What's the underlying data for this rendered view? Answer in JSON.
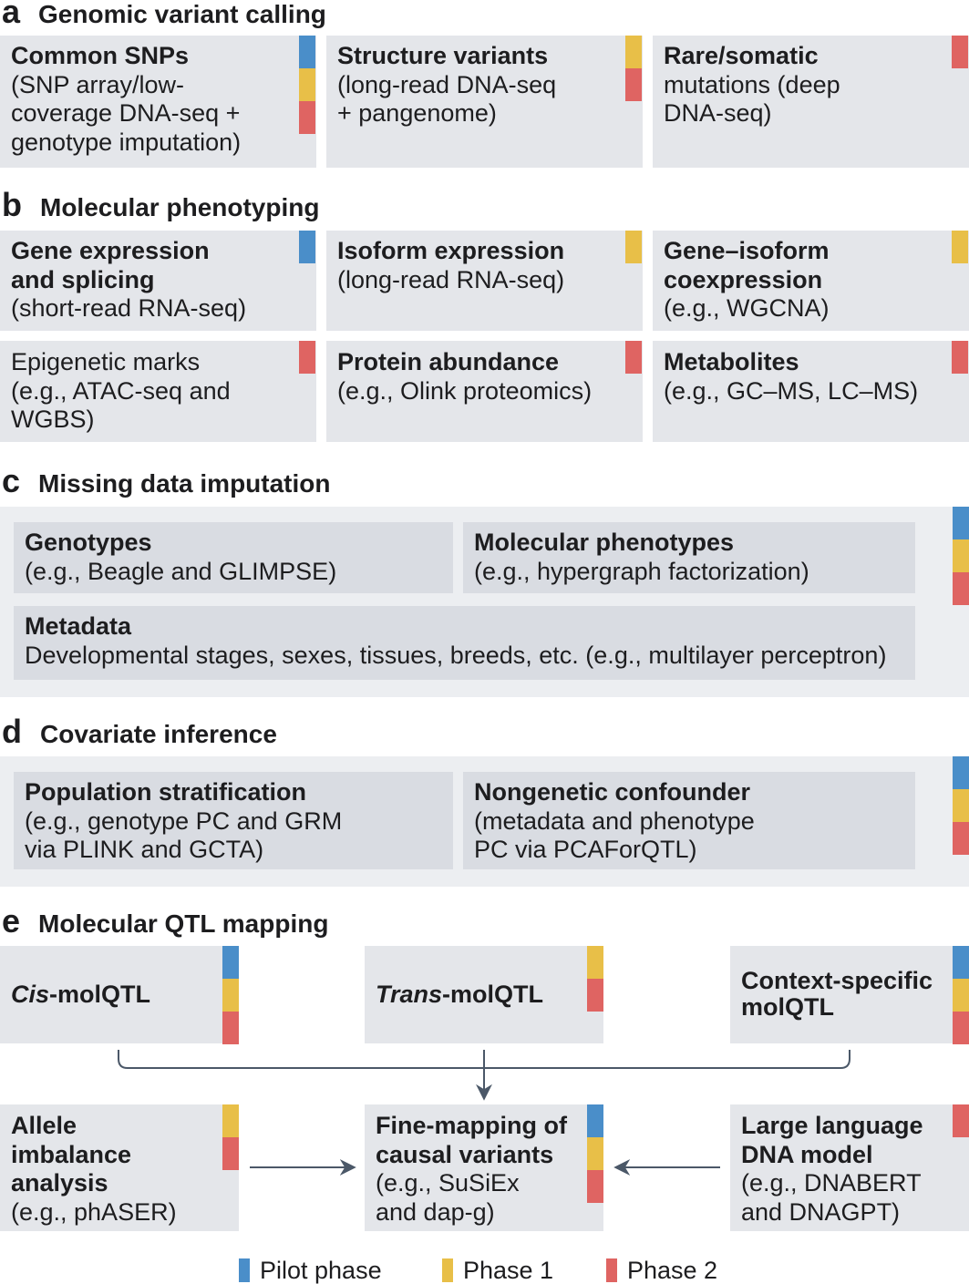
{
  "sections": {
    "a": {
      "letter": "a",
      "title": "Genomic variant calling",
      "cards": [
        {
          "title": "Common SNPs",
          "lines": [
            "(SNP array/low-",
            "coverage DNA-seq +",
            "genotype imputation)"
          ]
        },
        {
          "title": "Structure variants",
          "lines": [
            "(long-read DNA-seq",
            "+ pangenome)"
          ]
        },
        {
          "title": "Rare/somatic",
          "lines": [
            "mutations (deep",
            "DNA-seq)"
          ]
        }
      ]
    },
    "b": {
      "letter": "b",
      "title": "Molecular phenotyping",
      "cards": [
        {
          "title_lines": [
            "Gene expression",
            "and splicing"
          ],
          "lines": [
            "(short-read RNA-seq)"
          ]
        },
        {
          "title_lines": [
            "Isoform expression"
          ],
          "lines": [
            "(long-read RNA-seq)"
          ]
        },
        {
          "title_lines": [
            "Gene–isoform",
            "coexpression"
          ],
          "lines": [
            "(e.g., WGCNA)"
          ]
        },
        {
          "lines": [
            "Epigenetic marks",
            "(e.g., ATAC-seq and",
            "WGBS)"
          ]
        },
        {
          "title_lines": [
            "Protein abundance"
          ],
          "lines": [
            "(e.g., Olink proteomics)"
          ]
        },
        {
          "title_lines": [
            "Metabolites"
          ],
          "lines": [
            "(e.g., GC–MS, LC–MS)"
          ]
        }
      ]
    },
    "c": {
      "letter": "c",
      "title": "Missing data imputation",
      "cards": [
        {
          "title": "Genotypes",
          "lines": [
            "(e.g., Beagle and GLIMPSE)"
          ]
        },
        {
          "title": "Molecular phenotypes",
          "lines": [
            "(e.g., hypergraph factorization)"
          ]
        },
        {
          "title": "Metadata",
          "lines": [
            "Developmental stages, sexes, tissues, breeds, etc. (e.g., multilayer perceptron)"
          ]
        }
      ]
    },
    "d": {
      "letter": "d",
      "title": "Covariate inference",
      "cards": [
        {
          "title": "Population stratification",
          "lines": [
            "(e.g., genotype PC and GRM",
            "via PLINK and GCTA)"
          ]
        },
        {
          "title": "Nongenetic confounder",
          "lines": [
            "(metadata and phenotype",
            "PC via PCAForQTL)"
          ]
        }
      ]
    },
    "e": {
      "letter": "e",
      "title": "Molecular QTL mapping",
      "top": [
        {
          "italic": "Cis",
          "rest": "-molQTL"
        },
        {
          "italic": "Trans",
          "rest": "-molQTL"
        },
        {
          "title_lines": [
            "Context-specific",
            "molQTL"
          ]
        }
      ],
      "bottom": [
        {
          "title_lines": [
            "Allele",
            "imbalance",
            "analysis"
          ],
          "lines": [
            "(e.g., phASER)"
          ]
        },
        {
          "title_lines": [
            "Fine-mapping of",
            "causal variants"
          ],
          "lines": [
            "(e.g., SuSiEx",
            "and dap-g)"
          ]
        },
        {
          "title_lines": [
            "Large language",
            "DNA model"
          ],
          "lines": [
            "(e.g., DNABERT",
            "and DNAGPT)"
          ]
        }
      ]
    }
  },
  "legend": [
    {
      "label": "Pilot phase",
      "color": "#4a8ec9"
    },
    {
      "label": "Phase 1",
      "color": "#e8bf48"
    },
    {
      "label": "Phase 2",
      "color": "#df6462"
    }
  ],
  "colors": {
    "pilot": "#4a8ec9",
    "phase1": "#e8bf48",
    "phase2": "#df6462",
    "card": "#e4e6ea",
    "connector": "#4b5868"
  }
}
